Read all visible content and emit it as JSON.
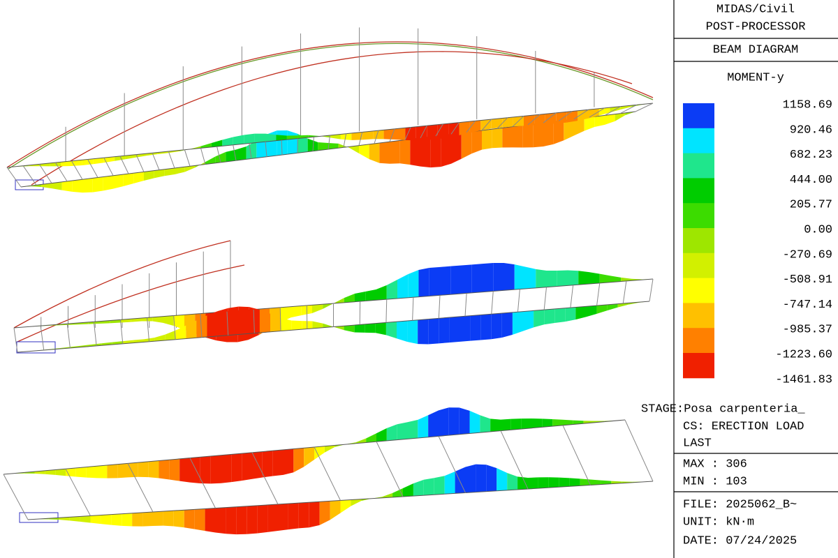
{
  "header": {
    "lines": [
      "MIDAS/Civil",
      "POST-PROCESSOR"
    ],
    "title": "BEAM DIAGRAM"
  },
  "legend": {
    "title": "MOMENT-y",
    "labels": [
      "1158.69",
      "920.46",
      "682.23",
      "444.00",
      "205.77",
      "0.00",
      "-270.69",
      "-508.91",
      "-747.14",
      "-985.37",
      "-1223.60",
      "-1461.83"
    ],
    "colors": [
      "#0b3cf5",
      "#00e4ff",
      "#1fe68c",
      "#00cc00",
      "#3cdc00",
      "#9ee600",
      "#d2f000",
      "#ffff00",
      "#ffc000",
      "#ff8000",
      "#f02000"
    ]
  },
  "info": {
    "stage": "STAGE:Posa carpenteria_",
    "cs": "CS: ERECTION LOAD",
    "step": "LAST",
    "max": "MAX : 306",
    "min": "MIN : 103",
    "file": "FILE: 2025062_B~",
    "unit": "UNIT: kN·m",
    "date": "DATE: 07/24/2025"
  }
}
